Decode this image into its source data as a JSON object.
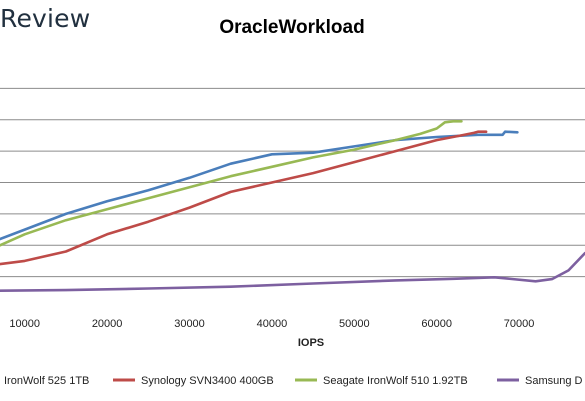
{
  "brand": {
    "text": "Review"
  },
  "chart_data": {
    "type": "line",
    "title": "OracleWorkload",
    "xlabel": "IOPS",
    "ylabel": "",
    "xlim": [
      7000,
      78000
    ],
    "ylim": [
      0,
      8
    ],
    "x_ticks": [
      10000,
      20000,
      30000,
      40000,
      50000,
      60000,
      70000
    ],
    "x_tick_labels": [
      "10000",
      "20000",
      "30000",
      "40000",
      "50000",
      "60000",
      "70000"
    ],
    "y_gridlines": [
      1,
      2,
      3,
      4,
      5,
      6,
      7
    ],
    "grid": true,
    "legend_position": "bottom",
    "series": [
      {
        "name": "IronWolf 525 1TB",
        "color": "#4a7ebb",
        "points": [
          [
            7000,
            2.2
          ],
          [
            10000,
            2.5
          ],
          [
            15000,
            3.0
          ],
          [
            20000,
            3.4
          ],
          [
            25000,
            3.75
          ],
          [
            30000,
            4.15
          ],
          [
            35000,
            4.6
          ],
          [
            40000,
            4.9
          ],
          [
            45000,
            4.95
          ],
          [
            50000,
            5.15
          ],
          [
            55000,
            5.35
          ],
          [
            60000,
            5.45
          ],
          [
            65000,
            5.52
          ],
          [
            68000,
            5.52
          ],
          [
            68300,
            5.62
          ],
          [
            69800,
            5.6
          ]
        ]
      },
      {
        "name": "Synology SVN3400 400GB",
        "color": "#be4b48",
        "points": [
          [
            7000,
            1.4
          ],
          [
            10000,
            1.5
          ],
          [
            15000,
            1.8
          ],
          [
            20000,
            2.35
          ],
          [
            25000,
            2.75
          ],
          [
            30000,
            3.2
          ],
          [
            35000,
            3.7
          ],
          [
            40000,
            4.0
          ],
          [
            45000,
            4.3
          ],
          [
            50000,
            4.65
          ],
          [
            55000,
            5.0
          ],
          [
            60000,
            5.35
          ],
          [
            63000,
            5.5
          ],
          [
            64500,
            5.58
          ],
          [
            65000,
            5.62
          ],
          [
            66000,
            5.62
          ]
        ]
      },
      {
        "name": "Seagate IronWolf 510 1.92TB",
        "color": "#98b954",
        "points": [
          [
            7000,
            2.0
          ],
          [
            10000,
            2.35
          ],
          [
            15000,
            2.8
          ],
          [
            20000,
            3.15
          ],
          [
            25000,
            3.5
          ],
          [
            30000,
            3.85
          ],
          [
            35000,
            4.2
          ],
          [
            40000,
            4.5
          ],
          [
            45000,
            4.8
          ],
          [
            50000,
            5.05
          ],
          [
            55000,
            5.35
          ],
          [
            58000,
            5.55
          ],
          [
            60000,
            5.72
          ],
          [
            61000,
            5.92
          ],
          [
            62000,
            5.95
          ],
          [
            63000,
            5.95
          ]
        ]
      },
      {
        "name": "Samsung D",
        "color": "#7d60a0",
        "points": [
          [
            7000,
            0.55
          ],
          [
            15000,
            0.57
          ],
          [
            25000,
            0.62
          ],
          [
            35000,
            0.68
          ],
          [
            45000,
            0.78
          ],
          [
            55000,
            0.88
          ],
          [
            62000,
            0.93
          ],
          [
            67000,
            0.98
          ],
          [
            72000,
            0.85
          ],
          [
            74000,
            0.92
          ],
          [
            76000,
            1.2
          ],
          [
            78000,
            1.75
          ]
        ]
      }
    ]
  }
}
